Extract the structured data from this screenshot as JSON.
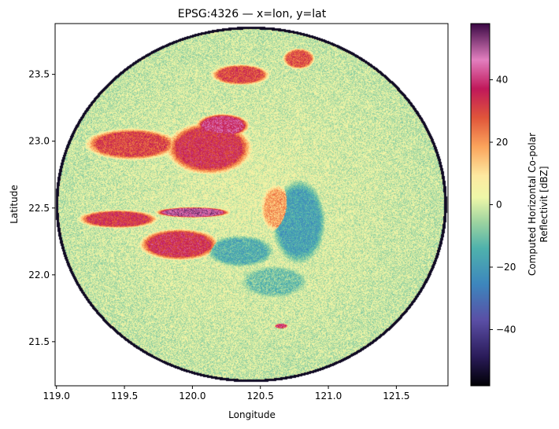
{
  "chart_data": {
    "type": "heatmap",
    "title": "EPSG:4326 — x=lon, y=lat",
    "xlabel": "Longitude",
    "ylabel": "Latitude",
    "xlim": [
      118.99,
      121.88
    ],
    "ylim": [
      21.17,
      23.88
    ],
    "xticks": [
      {
        "value": 119.0,
        "label": "119.0"
      },
      {
        "value": 119.5,
        "label": "119.5"
      },
      {
        "value": 120.0,
        "label": "120.0"
      },
      {
        "value": 120.5,
        "label": "120.5"
      },
      {
        "value": 121.0,
        "label": "121.0"
      },
      {
        "value": 121.5,
        "label": "121.5"
      }
    ],
    "yticks": [
      {
        "value": 21.5,
        "label": "21.5"
      },
      {
        "value": 22.0,
        "label": "22.0"
      },
      {
        "value": 22.5,
        "label": "22.5"
      },
      {
        "value": 23.0,
        "label": "23.0"
      },
      {
        "value": 23.5,
        "label": "23.5"
      }
    ],
    "colorbar": {
      "label_lines": [
        "Computed Horizontal Co-polar",
        "Reflectivit [dBZ]"
      ],
      "range": [
        -58,
        58
      ],
      "colormap": "Spectral_r (cyclic-like radar)",
      "ticks": [
        {
          "value": 40,
          "label": "40"
        },
        {
          "value": 20,
          "label": "20"
        },
        {
          "value": 0,
          "label": "0"
        },
        {
          "value": -20,
          "label": "−20"
        },
        {
          "value": -40,
          "label": "−40"
        }
      ]
    },
    "radar": {
      "center_lon": 120.43,
      "center_lat": 22.53,
      "range_deg_lon": 1.44,
      "range_deg_lat": 1.33,
      "background_dbz": 2
    },
    "echo_regions": [
      {
        "name": "northwest band",
        "lon": 119.55,
        "lat": 22.98,
        "r_lon": 0.35,
        "r_lat": 0.12,
        "dbz": 30
      },
      {
        "name": "north central cluster",
        "lon": 120.12,
        "lat": 22.95,
        "r_lon": 0.32,
        "r_lat": 0.2,
        "dbz": 34
      },
      {
        "name": "north core",
        "lon": 120.22,
        "lat": 23.12,
        "r_lon": 0.2,
        "r_lat": 0.09,
        "dbz": 40
      },
      {
        "name": "upper cells",
        "lon": 120.35,
        "lat": 23.5,
        "r_lon": 0.22,
        "r_lat": 0.08,
        "dbz": 30
      },
      {
        "name": "far north cells",
        "lon": 120.78,
        "lat": 23.62,
        "r_lon": 0.12,
        "r_lat": 0.08,
        "dbz": 28
      },
      {
        "name": "west band",
        "lon": 119.45,
        "lat": 22.42,
        "r_lon": 0.3,
        "r_lat": 0.07,
        "dbz": 33
      },
      {
        "name": "southwest cluster",
        "lon": 119.9,
        "lat": 22.23,
        "r_lon": 0.3,
        "r_lat": 0.12,
        "dbz": 35
      },
      {
        "name": "bright band",
        "lon": 120.0,
        "lat": 22.47,
        "r_lon": 0.28,
        "r_lat": 0.04,
        "dbz": 48
      },
      {
        "name": "clutter near radar",
        "lon": 120.62,
        "lat": 22.5,
        "r_lon": 0.12,
        "r_lat": 0.18,
        "dbz": 18
      },
      {
        "name": "east clear air",
        "lon": 120.78,
        "lat": 22.4,
        "r_lon": 0.2,
        "r_lat": 0.32,
        "dbz": -18
      },
      {
        "name": "south clear air",
        "lon": 120.35,
        "lat": 22.18,
        "r_lon": 0.25,
        "r_lat": 0.12,
        "dbz": -15
      },
      {
        "name": "south-southeast patch",
        "lon": 120.6,
        "lat": 21.95,
        "r_lon": 0.25,
        "r_lat": 0.12,
        "dbz": -10
      },
      {
        "name": "small cell",
        "lon": 120.65,
        "lat": 21.62,
        "r_lon": 0.05,
        "r_lat": 0.02,
        "dbz": 38
      }
    ],
    "edge_ring_dbz": -55
  }
}
